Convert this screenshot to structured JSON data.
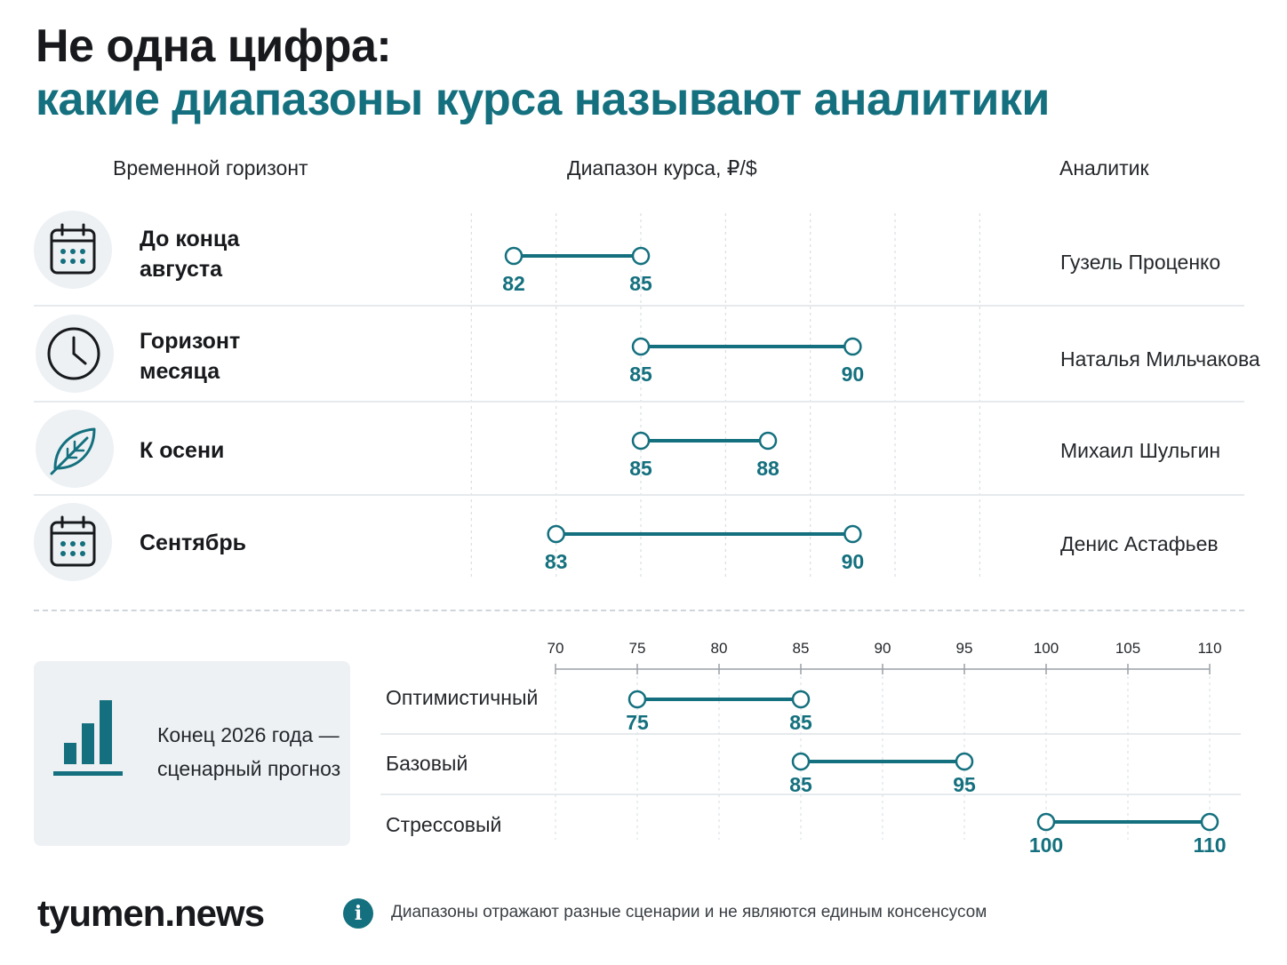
{
  "title": {
    "line1": "Не одна цифра:",
    "line2": "какие диапазоны курса называют аналитики"
  },
  "columns": {
    "horizon": "Временной горизонт",
    "range": "Диапазон курса, ₽/$",
    "analyst": "Аналитик"
  },
  "colors": {
    "accent": "#14707e",
    "dark": "#17191c",
    "panel": "#eef1f4"
  },
  "chart_data": [
    {
      "type": "range",
      "xlim": [
        80,
        93
      ],
      "grid": true,
      "ticks_visible": false,
      "rows": [
        {
          "horizon": "До конца августа",
          "horizon_lines": [
            "До конца",
            "августа"
          ],
          "icon": "calendar-icon",
          "low": 82,
          "high": 85,
          "low_label": "82",
          "high_label": "85",
          "analyst": "Гузель Проценко"
        },
        {
          "horizon": "Горизонт месяца",
          "horizon_lines": [
            "Горизонт",
            "месяца"
          ],
          "icon": "clock-icon",
          "low": 85,
          "high": 90,
          "low_label": "85",
          "high_label": "90",
          "analyst": "Наталья Мильчакова"
        },
        {
          "horizon": "К осени",
          "horizon_lines": [
            "К осени"
          ],
          "icon": "leaf-icon",
          "low": 85,
          "high": 88,
          "low_label": "85",
          "high_label": "88",
          "analyst": "Михаил Шульгин"
        },
        {
          "horizon": "Сентябрь",
          "horizon_lines": [
            "Сентябрь"
          ],
          "icon": "calendar-icon",
          "low": 83,
          "high": 90,
          "low_label": "83",
          "high_label": "90",
          "analyst": "Денис Астафьев"
        }
      ]
    },
    {
      "type": "range",
      "title_lines": [
        "Конец 2026 года —",
        "сценарный прогноз"
      ],
      "icon": "bar-chart-icon",
      "xlim": [
        70,
        110
      ],
      "ticks": [
        "70",
        "75",
        "80",
        "85",
        "90",
        "95",
        "100",
        "105",
        "110"
      ],
      "grid": true,
      "rows": [
        {
          "scenario": "Оптимистичный",
          "low": 75,
          "high": 85,
          "low_label": "75",
          "high_label": "85"
        },
        {
          "scenario": "Базовый",
          "low": 85,
          "high": 95,
          "low_label": "85",
          "high_label": "95"
        },
        {
          "scenario": "Стрессовый",
          "low": 100,
          "high": 110,
          "low_label": "100",
          "high_label": "110"
        }
      ]
    }
  ],
  "footer": {
    "logo": "tyumen.news",
    "info_icon": "info-icon",
    "info_glyph": "i",
    "note": "Диапазоны отражают разные сценарии и не являются единым консенсусом"
  }
}
